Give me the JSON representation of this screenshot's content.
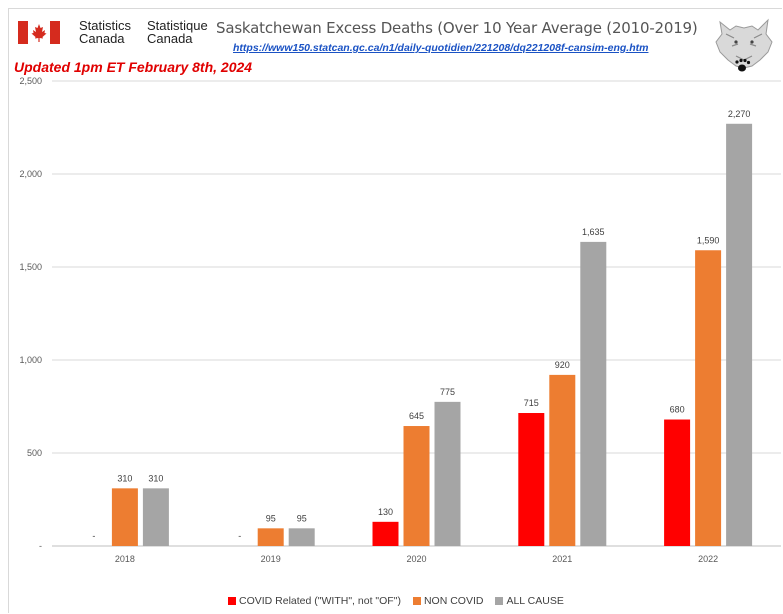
{
  "header": {
    "brand_en_line1": "Statistics",
    "brand_en_line2": "Canada",
    "brand_fr_line1": "Statistique",
    "brand_fr_line2": "Canada",
    "title": "Saskatchewan Excess Deaths (Over 10 Year Average (2010-2019)",
    "link": "https://www150.statcan.gc.ca/n1/daily-quotidien/221208/dq221208f-cansim-eng.htm",
    "updated": "Updated 1pm ET February 8th, 2024"
  },
  "icons": {
    "flag": "canada-flag-icon",
    "logo": "wolf-paw-logo-icon"
  },
  "colors": {
    "covid": "#ff0000",
    "non_covid": "#ed7d31",
    "all_cause": "#a5a5a5",
    "flag_red": "#d52b1e"
  },
  "chart_data": {
    "type": "bar",
    "categories": [
      "2018",
      "2019",
      "2020",
      "2021",
      "2022"
    ],
    "series": [
      {
        "name": "COVID Related (\"WITH\", not \"OF\")",
        "values": [
          0,
          0,
          130,
          715,
          680
        ],
        "labels": [
          "-",
          "-",
          "130",
          "715",
          "680"
        ]
      },
      {
        "name": "NON COVID",
        "values": [
          310,
          95,
          645,
          920,
          1590
        ],
        "labels": [
          "310",
          "95",
          "645",
          "920",
          "1,590"
        ]
      },
      {
        "name": "ALL CAUSE",
        "values": [
          310,
          95,
          775,
          1635,
          2270
        ],
        "labels": [
          "310",
          "95",
          "775",
          "1,635",
          "2,270"
        ]
      }
    ],
    "y_ticks": [
      "-",
      "500",
      "1,000",
      "1,500",
      "2,000",
      "2,500"
    ],
    "ylim": [
      0,
      2500
    ],
    "grid": true,
    "legend_position": "bottom"
  }
}
